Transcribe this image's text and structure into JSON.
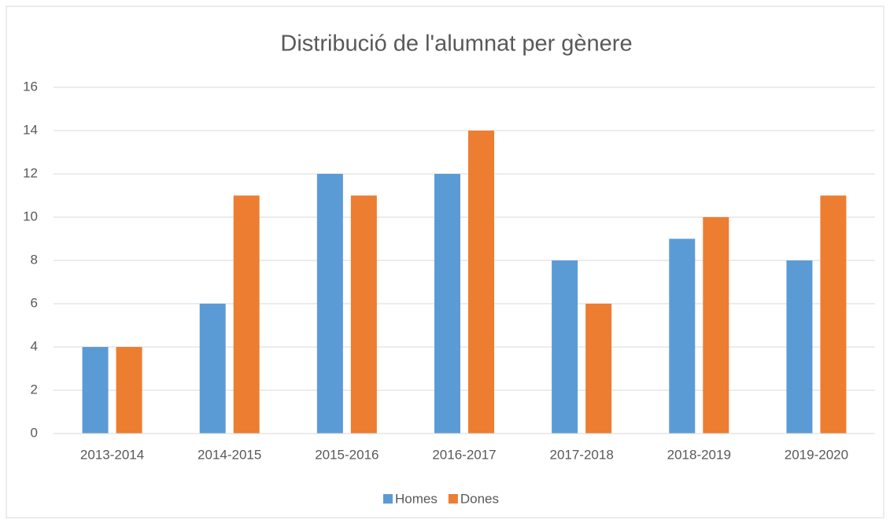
{
  "chart_data": {
    "type": "bar",
    "title": "Distribució de l'alumnat per gènere",
    "categories": [
      "2013-2014",
      "2014-2015",
      "2015-2016",
      "2016-2017",
      "2017-2018",
      "2018-2019",
      "2019-2020"
    ],
    "series": [
      {
        "name": "Homes",
        "color": "#5b9bd5",
        "values": [
          4,
          6,
          12,
          12,
          8,
          9,
          8
        ]
      },
      {
        "name": "Dones",
        "color": "#ed7d31",
        "values": [
          4,
          11,
          11,
          14,
          6,
          10,
          11
        ]
      }
    ],
    "ylim": [
      0,
      16
    ],
    "yticks": [
      0,
      2,
      4,
      6,
      8,
      10,
      12,
      14,
      16
    ],
    "grid": true,
    "legend": "bottom"
  }
}
